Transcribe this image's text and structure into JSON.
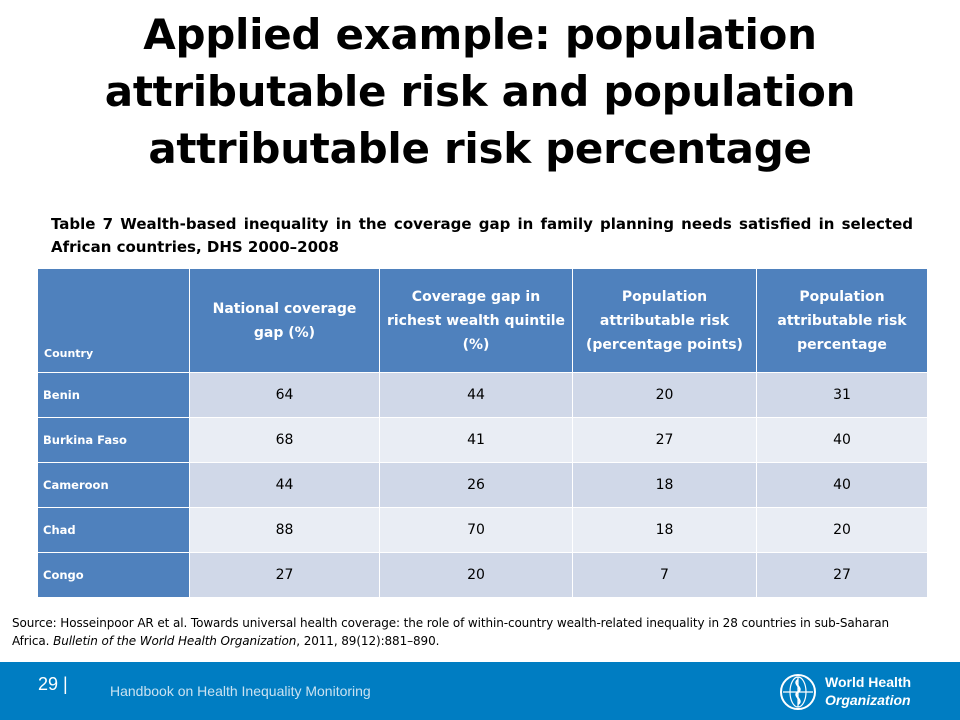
{
  "title": "Applied example: population attributable risk and population attributable risk percentage",
  "caption": "Table 7 Wealth-based inequality in the coverage gap in family planning needs satisfied in selected African countries, DHS 2000–2008",
  "table": {
    "headers": [
      "Country",
      "National coverage gap (%)",
      "Coverage gap in richest wealth quintile (%)",
      "Population attributable risk (percentage points)",
      "Population attributable risk percentage"
    ],
    "rows": [
      [
        "Benin",
        "64",
        "44",
        "20",
        "31"
      ],
      [
        "Burkina Faso",
        "68",
        "41",
        "27",
        "40"
      ],
      [
        "Cameroon",
        "44",
        "26",
        "18",
        "40"
      ],
      [
        "Chad",
        "88",
        "70",
        "18",
        "20"
      ],
      [
        "Congo",
        "27",
        "20",
        "7",
        "27"
      ]
    ]
  },
  "source": {
    "prefix": "Source: Hosseinpoor AR et al. Towards universal health coverage: the role of within-country wealth-related inequality in 28 countries in sub-Saharan Africa. ",
    "journal": "Bulletin of the World Health Organization",
    "suffix": ", 2011, 89(12):881–890."
  },
  "footer": {
    "page_number": "29",
    "separator": "|",
    "book_title": "Handbook on Health Inequality Monitoring",
    "logo_line1": "World Health",
    "logo_line2": "Organization",
    "logo_icon": "who-emblem-icon"
  },
  "colors": {
    "header_blue": "#4f81bd",
    "row_light": "#e9edf4",
    "row_dark": "#d0d8e8",
    "footer_blue": "#007dc2"
  }
}
